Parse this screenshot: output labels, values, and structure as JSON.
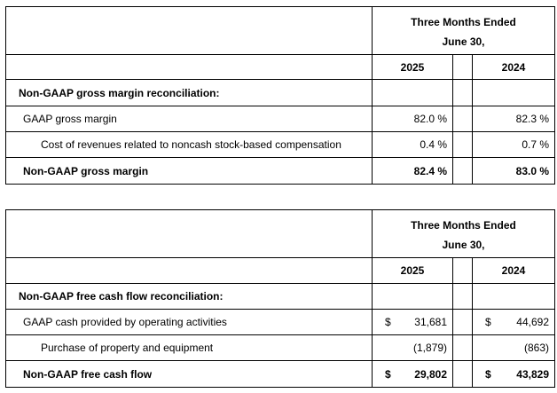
{
  "gross_margin_table": {
    "period_header_line1": "Three Months Ended",
    "period_header_line2": "June 30,",
    "year_current": "2025",
    "year_prior": "2024",
    "section_title": "Non-GAAP gross margin reconciliation:",
    "rows": [
      {
        "label": "GAAP gross margin",
        "current": "82.0 %",
        "prior": "82.3 %"
      },
      {
        "label": "Cost of revenues related to noncash stock-based compensation",
        "current": "0.4 %",
        "prior": "0.7 %"
      },
      {
        "label": "Non-GAAP gross margin",
        "current": "82.4 %",
        "prior": "83.0 %"
      }
    ]
  },
  "free_cash_flow_table": {
    "period_header_line1": "Three Months Ended",
    "period_header_line2": "June 30,",
    "year_current": "2025",
    "year_prior": "2024",
    "section_title": "Non-GAAP free cash flow reconciliation:",
    "currency_symbol": "$",
    "rows": [
      {
        "label": "GAAP cash provided by operating activities",
        "current": "31,681",
        "prior": "44,692"
      },
      {
        "label": "Purchase of property and equipment",
        "current": "(1,879)",
        "prior": "(863)"
      },
      {
        "label": "Non-GAAP free cash flow",
        "current": "29,802",
        "prior": "43,829"
      }
    ]
  }
}
